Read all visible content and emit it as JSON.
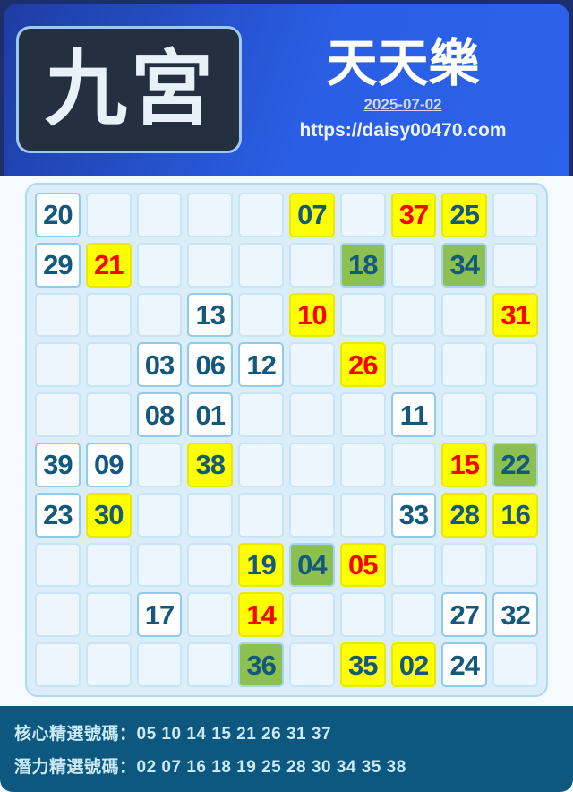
{
  "header": {
    "badge": "九宮",
    "title": "天天樂",
    "date": "2025-07-02",
    "url": "https://daisy00470.com"
  },
  "grid": {
    "rows": 10,
    "cols": 10,
    "cells": [
      {
        "r": 1,
        "c": 1,
        "n": "20",
        "style": "plain"
      },
      {
        "r": 1,
        "c": 6,
        "n": "07",
        "style": "yellow"
      },
      {
        "r": 1,
        "c": 8,
        "n": "37",
        "style": "core"
      },
      {
        "r": 1,
        "c": 9,
        "n": "25",
        "style": "yellow"
      },
      {
        "r": 2,
        "c": 1,
        "n": "29",
        "style": "plain"
      },
      {
        "r": 2,
        "c": 2,
        "n": "21",
        "style": "core"
      },
      {
        "r": 2,
        "c": 7,
        "n": "18",
        "style": "green"
      },
      {
        "r": 2,
        "c": 9,
        "n": "34",
        "style": "green"
      },
      {
        "r": 3,
        "c": 4,
        "n": "13",
        "style": "plain"
      },
      {
        "r": 3,
        "c": 6,
        "n": "10",
        "style": "core"
      },
      {
        "r": 3,
        "c": 10,
        "n": "31",
        "style": "core"
      },
      {
        "r": 4,
        "c": 3,
        "n": "03",
        "style": "plain"
      },
      {
        "r": 4,
        "c": 4,
        "n": "06",
        "style": "plain"
      },
      {
        "r": 4,
        "c": 5,
        "n": "12",
        "style": "plain"
      },
      {
        "r": 4,
        "c": 7,
        "n": "26",
        "style": "core"
      },
      {
        "r": 5,
        "c": 3,
        "n": "08",
        "style": "plain"
      },
      {
        "r": 5,
        "c": 4,
        "n": "01",
        "style": "plain"
      },
      {
        "r": 5,
        "c": 8,
        "n": "11",
        "style": "plain"
      },
      {
        "r": 6,
        "c": 1,
        "n": "39",
        "style": "plain"
      },
      {
        "r": 6,
        "c": 2,
        "n": "09",
        "style": "plain"
      },
      {
        "r": 6,
        "c": 4,
        "n": "38",
        "style": "yellow"
      },
      {
        "r": 6,
        "c": 9,
        "n": "15",
        "style": "core"
      },
      {
        "r": 6,
        "c": 10,
        "n": "22",
        "style": "green"
      },
      {
        "r": 7,
        "c": 1,
        "n": "23",
        "style": "plain"
      },
      {
        "r": 7,
        "c": 2,
        "n": "30",
        "style": "yellow"
      },
      {
        "r": 7,
        "c": 8,
        "n": "33",
        "style": "plain"
      },
      {
        "r": 7,
        "c": 9,
        "n": "28",
        "style": "yellow"
      },
      {
        "r": 7,
        "c": 10,
        "n": "16",
        "style": "yellow"
      },
      {
        "r": 8,
        "c": 5,
        "n": "19",
        "style": "yellow"
      },
      {
        "r": 8,
        "c": 6,
        "n": "04",
        "style": "green"
      },
      {
        "r": 8,
        "c": 7,
        "n": "05",
        "style": "core"
      },
      {
        "r": 9,
        "c": 3,
        "n": "17",
        "style": "plain"
      },
      {
        "r": 9,
        "c": 5,
        "n": "14",
        "style": "core"
      },
      {
        "r": 9,
        "c": 9,
        "n": "27",
        "style": "plain"
      },
      {
        "r": 9,
        "c": 10,
        "n": "32",
        "style": "plain"
      },
      {
        "r": 10,
        "c": 5,
        "n": "36",
        "style": "green"
      },
      {
        "r": 10,
        "c": 7,
        "n": "35",
        "style": "yellow"
      },
      {
        "r": 10,
        "c": 8,
        "n": "02",
        "style": "yellow"
      },
      {
        "r": 10,
        "c": 9,
        "n": "24",
        "style": "plain"
      }
    ]
  },
  "footer": {
    "lines": [
      {
        "label": "核心精選號碼：",
        "numbers": "05 10 14 15 21 26 31 37"
      },
      {
        "label": "潛力精選號碼：",
        "numbers": "02 07 16 18 19 25 28 30 34 35 38"
      }
    ]
  },
  "colors": {
    "header_gradient_start": "#1e3da4",
    "header_gradient_end": "#2b63ea",
    "badge_bg": "#242f40",
    "badge_border": "#9ccaf0",
    "board_bg": "#daedf9",
    "cell_yellow": "#ffff00",
    "cell_green": "#8cc152",
    "core_number_red": "#fe0000",
    "number_dark_blue": "#14597c",
    "footer_bg": "#0e587f",
    "footer_text": "#c9e9f5"
  }
}
